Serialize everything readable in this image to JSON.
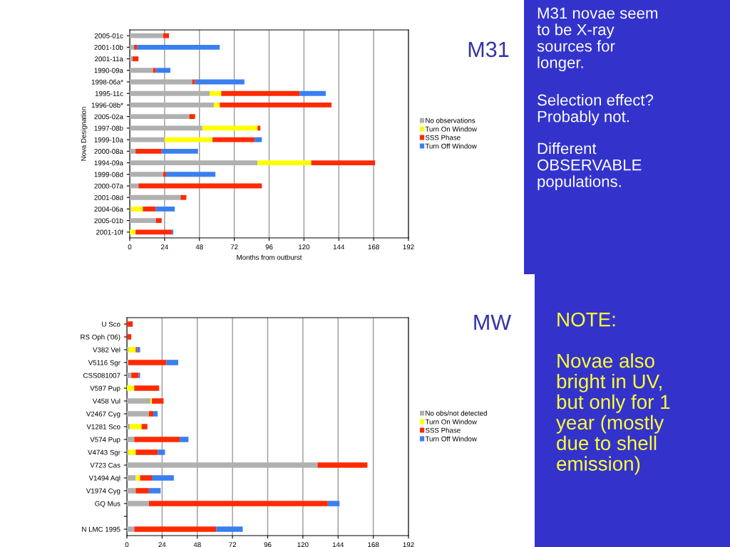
{
  "chart_data": [
    {
      "type": "bar",
      "orientation": "horizontal",
      "stacked": true,
      "xlabel": "Months from outburst",
      "ylabel": "Nova Designation",
      "categories": [
        "2005-01c",
        "2001-10b",
        "2001-11a",
        "1990-09a",
        "1998-06a*",
        "1995-11c",
        "1996-08b*",
        "2005-02a",
        "1997-08b",
        "1999-10a",
        "2000-08a",
        "1994-09a",
        "1999-08d",
        "2000-07a",
        "2001-08d",
        "2004-06a",
        "2005-01b",
        "2001-10f"
      ],
      "series": [
        {
          "name": "No observations",
          "color": "#b0b0b0",
          "values": [
            23,
            3,
            2,
            16,
            43,
            55,
            58,
            41,
            50,
            24,
            4,
            88,
            23,
            6,
            35,
            1,
            18,
            0
          ]
        },
        {
          "name": "Turn On Window",
          "color": "#ffff00",
          "values": [
            0,
            0,
            0,
            0,
            0,
            8,
            4,
            0,
            38,
            33,
            0,
            37,
            0,
            0,
            0,
            8,
            0,
            4
          ]
        },
        {
          "name": "SSS Phase",
          "color": "#ff2a00",
          "values": [
            4,
            2,
            4,
            2,
            2,
            54,
            77,
            4,
            2,
            29,
            18,
            44,
            2,
            85,
            4,
            9,
            4,
            25
          ]
        },
        {
          "name": "Turn Off Window",
          "color": "#3a7fef",
          "values": [
            0,
            57,
            0,
            10,
            34,
            18,
            0,
            0,
            0,
            5,
            25,
            0,
            34,
            0,
            0,
            13,
            0,
            1
          ]
        }
      ],
      "xlim": [
        0,
        192
      ],
      "xticks": [
        0,
        24,
        48,
        72,
        96,
        120,
        144,
        168,
        192
      ],
      "grid": "x",
      "legend": "right",
      "annotations": [
        "M31",
        "M31 novae seem\nto be X-ray\nsources for\nlonger.",
        "Selection effect?\nProbably not.",
        "Different\nOBSERVABLE\npopulations."
      ]
    },
    {
      "type": "bar",
      "orientation": "horizontal",
      "stacked": true,
      "categories": [
        "U Sco",
        "RS Oph ('06)",
        "V382 Vel",
        "V5116 Sgr",
        "CSS081007",
        "V597 Pup",
        "V458 Vul",
        "V2467 Cyg",
        "V1281 Sco",
        "V574 Pup",
        "V4743 Sgr",
        "V723 Cas",
        "V1494 Aql",
        "V1974 Cyg",
        "GQ Mus",
        null,
        "N LMC 1995"
      ],
      "series": [
        {
          "name": "No obs/not detected",
          "color": "#b0b0b0",
          "values": [
            0,
            0,
            1,
            1,
            3,
            0,
            16,
            15,
            2,
            5,
            1,
            130,
            6,
            6,
            15,
            null,
            5
          ]
        },
        {
          "name": "Turn On Window",
          "color": "#ffff00",
          "values": [
            0,
            0,
            5,
            0,
            0,
            5,
            1,
            0,
            8,
            0,
            5,
            0,
            3,
            0,
            0,
            null,
            0
          ]
        },
        {
          "name": "SSS Phase",
          "color": "#ff2a00",
          "values": [
            4,
            3,
            1,
            26,
            5,
            17,
            8,
            3,
            4,
            31,
            15,
            34,
            8,
            9,
            122,
            null,
            56
          ]
        },
        {
          "name": "Turn Off Window",
          "color": "#3a7fef",
          "values": [
            0,
            0,
            2,
            8,
            1,
            0,
            0,
            3,
            0,
            6,
            5,
            0,
            15,
            8,
            8,
            null,
            18
          ]
        }
      ],
      "xlim": [
        0,
        192
      ],
      "xticks": [
        0,
        24,
        48,
        72,
        96,
        120,
        144,
        168,
        192
      ],
      "grid": "x",
      "legend": "right",
      "annotations": [
        "MW",
        "NOTE:",
        "Novae also\nbright in UV,\nbut only for 1\nyear (mostly\ndue to shell\nemission)"
      ]
    }
  ]
}
